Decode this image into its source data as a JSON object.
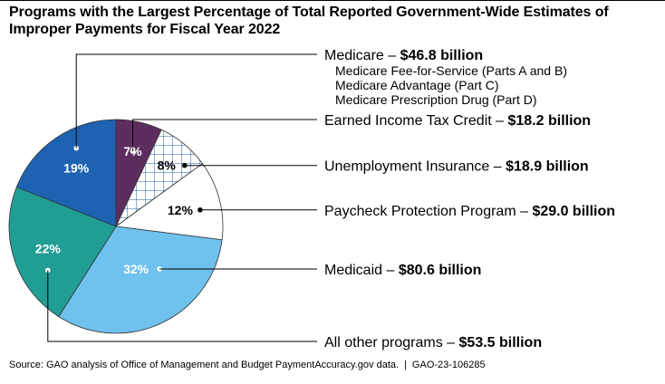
{
  "title": {
    "line1": "Programs with the Largest Percentage of Total Reported Government-Wide Estimates of",
    "line2": "Improper Payments for Fiscal Year 2022"
  },
  "chart_data": {
    "type": "pie",
    "title": "Programs with the Largest Percentage of Total Reported Government-Wide Estimates of Improper Payments for Fiscal Year 2022",
    "units": "billions of dollars",
    "slices": [
      {
        "name": "Earned Income Tax Credit",
        "percent": 7,
        "percent_label": "7%",
        "amount_label": "$18.2 billion",
        "value": 18.2,
        "color": "#5c2d5e",
        "pattern": "none",
        "text_color": "#ffffff"
      },
      {
        "name": "Unemployment Insurance",
        "percent": 8,
        "percent_label": "8%",
        "amount_label": "$18.9 billion",
        "value": 18.9,
        "color": "#ffffff",
        "pattern": "grid",
        "pattern_color": "#1f5ba8",
        "text_color": "#000000"
      },
      {
        "name": "Paycheck Protection Program",
        "percent": 12,
        "percent_label": "12%",
        "amount_label": "$29.0 billion",
        "value": 29.0,
        "color": "#ffffff",
        "pattern": "none",
        "text_color": "#000000"
      },
      {
        "name": "Medicaid",
        "percent": 32,
        "percent_label": "32%",
        "amount_label": "$80.6 billion",
        "value": 80.6,
        "color": "#6fc1ee",
        "pattern": "none",
        "text_color": "#ffffff"
      },
      {
        "name": "All other programs",
        "percent": 22,
        "percent_label": "22%",
        "amount_label": "$53.5 billion",
        "value": 53.5,
        "color": "#219e94",
        "pattern": "none",
        "text_color": "#ffffff"
      },
      {
        "name": "Medicare",
        "percent": 19,
        "percent_label": "19%",
        "amount_label": "$46.8 billion",
        "value": 46.8,
        "color": "#1d63b2",
        "pattern": "none",
        "text_color": "#ffffff",
        "sub_items": [
          "Medicare Fee-for-Service (Parts A and B)",
          "Medicare Advantage (Part C)",
          "Medicare Prescription Drug (Part D)"
        ]
      }
    ]
  },
  "label_separator": " – ",
  "source": {
    "text": "Source: GAO analysis of Office of Management and Budget PaymentAccuracy.gov data.",
    "separator": "|",
    "report_id": "GAO-23-106285"
  }
}
